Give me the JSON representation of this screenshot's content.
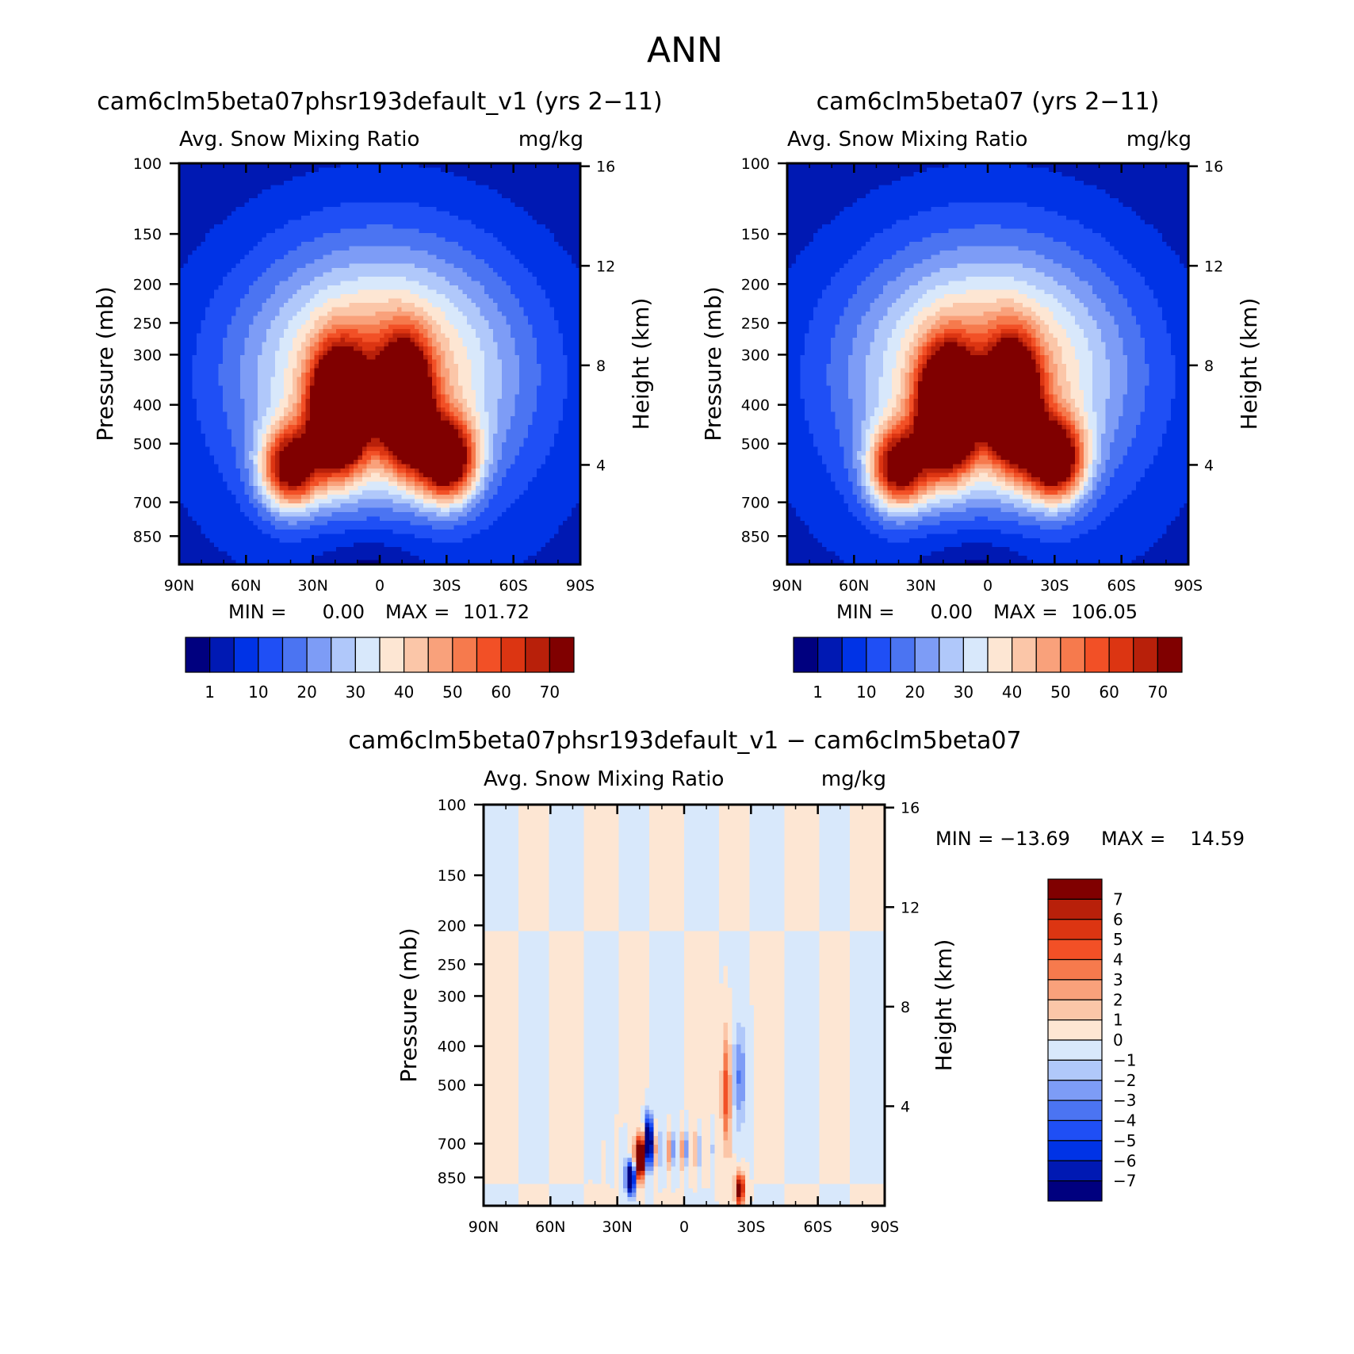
{
  "figure_title": "ANN",
  "chart_data": [
    {
      "type": "heatmap",
      "title": "cam6clm5beta07phsr193default_v1 (yrs 2−11)",
      "variable": "Avg. Snow Mixing Ratio",
      "units": "mg/kg",
      "ylabel": "Pressure (mb)",
      "ylabel_right": "Height (km)",
      "x_ticks": [
        "90N",
        "60N",
        "30N",
        "0",
        "30S",
        "60S",
        "90S"
      ],
      "x_values": [
        90,
        60,
        30,
        0,
        -30,
        -60,
        -90
      ],
      "pressure_ticks": [
        100,
        150,
        200,
        250,
        300,
        400,
        500,
        700,
        850
      ],
      "height_ticks": [
        16,
        12,
        8,
        4
      ],
      "ylim": [
        100,
        1000
      ],
      "min_label": "MIN =",
      "min_value": "0.00",
      "max_label": "MAX =",
      "max_value": "101.72",
      "colorbar_labels": [
        "1",
        "10",
        "20",
        "30",
        "40",
        "50",
        "60",
        "70"
      ],
      "colorbar_levels": [
        1,
        5,
        10,
        15,
        20,
        25,
        30,
        35,
        40,
        45,
        50,
        55,
        60,
        65,
        70
      ]
    },
    {
      "type": "heatmap",
      "title": "cam6clm5beta07 (yrs 2−11)",
      "variable": "Avg. Snow Mixing Ratio",
      "units": "mg/kg",
      "ylabel": "Pressure (mb)",
      "ylabel_right": "Height (km)",
      "x_ticks": [
        "90N",
        "60N",
        "30N",
        "0",
        "30S",
        "60S",
        "90S"
      ],
      "x_values": [
        90,
        60,
        30,
        0,
        -30,
        -60,
        -90
      ],
      "pressure_ticks": [
        100,
        150,
        200,
        250,
        300,
        400,
        500,
        700,
        850
      ],
      "height_ticks": [
        16,
        12,
        8,
        4
      ],
      "ylim": [
        100,
        1000
      ],
      "min_label": "MIN =",
      "min_value": "0.00",
      "max_label": "MAX =",
      "max_value": "106.05",
      "colorbar_labels": [
        "1",
        "10",
        "20",
        "30",
        "40",
        "50",
        "60",
        "70"
      ],
      "colorbar_levels": [
        1,
        5,
        10,
        15,
        20,
        25,
        30,
        35,
        40,
        45,
        50,
        55,
        60,
        65,
        70
      ]
    },
    {
      "type": "heatmap",
      "title": "cam6clm5beta07phsr193default_v1 − cam6clm5beta07",
      "variable": "Avg. Snow Mixing Ratio",
      "units": "mg/kg",
      "ylabel": "Pressure (mb)",
      "ylabel_right": "Height (km)",
      "x_ticks": [
        "90N",
        "60N",
        "30N",
        "0",
        "30S",
        "60S",
        "90S"
      ],
      "x_values": [
        90,
        60,
        30,
        0,
        -30,
        -60,
        -90
      ],
      "pressure_ticks": [
        100,
        150,
        200,
        250,
        300,
        400,
        500,
        700,
        850
      ],
      "height_ticks": [
        16,
        12,
        8,
        4
      ],
      "ylim": [
        100,
        1000
      ],
      "min_label": "MIN = −13.69",
      "max_label": "MAX =",
      "max_value": "14.59",
      "colorbar_labels": [
        "7",
        "6",
        "5",
        "4",
        "3",
        "2",
        "1",
        "0",
        "−1",
        "−2",
        "−3",
        "−4",
        "−5",
        "−6",
        "−7"
      ],
      "colorbar_levels": [
        7,
        6,
        5,
        4,
        3,
        2,
        1,
        0,
        -1,
        -2,
        -3,
        -4,
        -5,
        -6,
        -7
      ]
    }
  ],
  "colors": {
    "abs_scale": [
      "#00007f",
      "#0019b3",
      "#0033e6",
      "#1f4ff5",
      "#4b74f2",
      "#7d9cf6",
      "#b0c8fa",
      "#d8e8fb",
      "#fde6d3",
      "#fbc6a8",
      "#f9a17b",
      "#f67a4d",
      "#f25026",
      "#dc3512",
      "#b8200a",
      "#800000"
    ],
    "diff_scale": [
      "#800000",
      "#b8200a",
      "#dc3512",
      "#f25026",
      "#f67a4d",
      "#f9a17b",
      "#fbc6a8",
      "#fde6d3",
      "#d8e8fb",
      "#b0c8fa",
      "#7d9cf6",
      "#4b74f2",
      "#1f4ff5",
      "#0033e6",
      "#0019b3",
      "#00007f"
    ]
  }
}
